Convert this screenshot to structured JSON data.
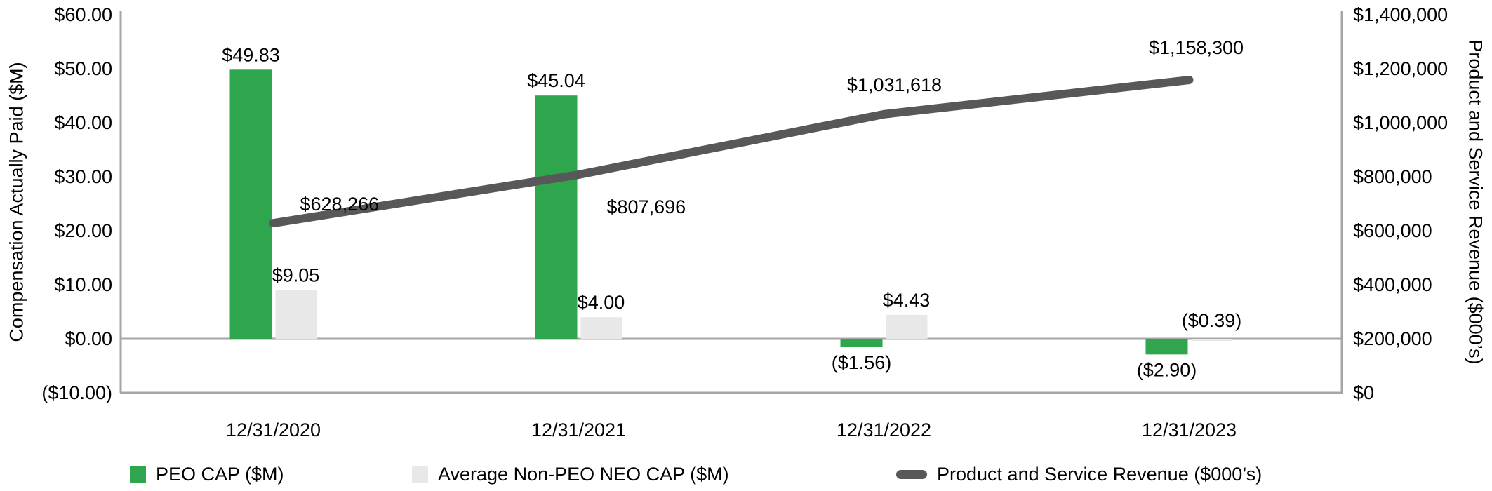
{
  "chart_data": {
    "type": "bar+line",
    "background": "#FFFFFF",
    "text_color": "#000000",
    "axis_line_color": "#A6A6A6",
    "grid": "off",
    "legend_position": "bottom",
    "categories": [
      "12/31/2020",
      "12/31/2021",
      "12/31/2022",
      "12/31/2023"
    ],
    "bar_series": [
      {
        "name": "PEO CAP ($M)",
        "color": "#2FA64D",
        "axis": "left",
        "values": [
          49.83,
          45.04,
          -1.56,
          -2.9
        ],
        "data_labels": [
          "$49.83",
          "$45.04",
          "($1.56)",
          "($2.90)"
        ]
      },
      {
        "name": "Average Non-PEO NEO CAP ($M)",
        "color": "#E8E8E8",
        "axis": "left",
        "values": [
          9.05,
          4.0,
          4.43,
          -0.39
        ],
        "data_labels": [
          "$9.05",
          "$4.00",
          "$4.43",
          "($0.39)"
        ]
      }
    ],
    "line_series": [
      {
        "name": "Product and Service Revenue ($000’s)",
        "color": "#58585A",
        "axis": "right",
        "values": [
          628266,
          807696,
          1031618,
          1158300
        ],
        "data_labels": [
          "$628,266",
          "$807,696",
          "$1,031,618",
          "$1,158,300"
        ]
      }
    ],
    "left_axis": {
      "title": "Compensation Actually Paid ($M)",
      "min": -10,
      "max": 60,
      "step": 10,
      "tick_labels": [
        "$60.00",
        "$50.00",
        "$40.00",
        "$30.00",
        "$20.00",
        "$10.00",
        "$0.00",
        "($10.00)"
      ]
    },
    "right_axis": {
      "title": "Product and Service Revenue ($000’s)",
      "min": 0,
      "max": 1400000,
      "step": 200000,
      "tick_labels": [
        "$1,400,000",
        "$1,200,000",
        "$1,000,000",
        "$800,000",
        "$600,000",
        "$400,000",
        "$200,000",
        "$0"
      ]
    }
  }
}
